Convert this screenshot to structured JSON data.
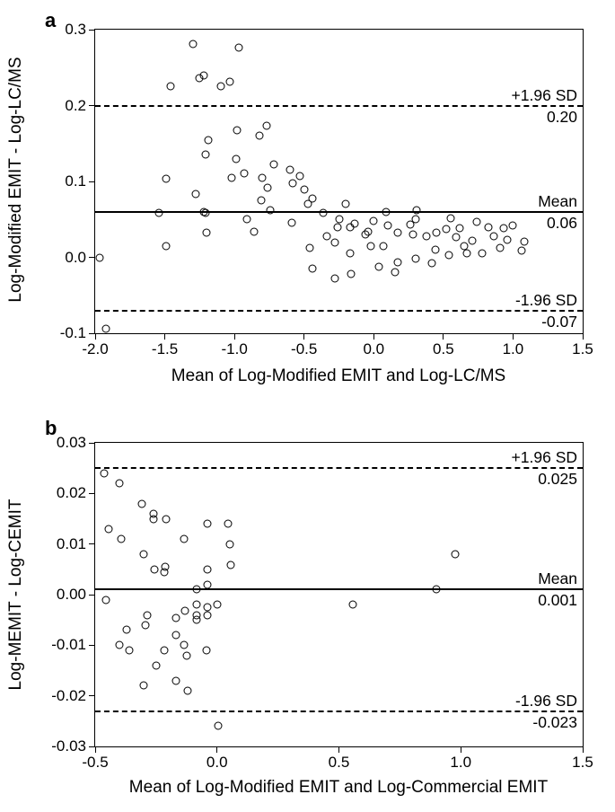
{
  "panel_a": {
    "type": "scatter",
    "panel_label": "a",
    "xlabel": "Mean of Log-Modified EMIT and Log-LC/MS",
    "ylabel": "Log-Modified EMIT - Log-LC/MS",
    "xlim": [
      -2.0,
      1.5
    ],
    "ylim": [
      -0.1,
      0.3
    ],
    "yticks": [
      -0.1,
      0.0,
      0.1,
      0.2,
      0.3
    ],
    "xticks": [
      -2.0,
      -1.5,
      -1.0,
      -0.5,
      0.0,
      0.5,
      1.0,
      1.5
    ],
    "reference_lines": {
      "upper": {
        "value": 0.2,
        "label": "+1.96 SD",
        "value_text": "0.20",
        "style": "dashed"
      },
      "mean": {
        "value": 0.06,
        "label": "Mean",
        "value_text": "0.06",
        "style": "solid"
      },
      "lower": {
        "value": -0.07,
        "label": "-1.96 SD",
        "value_text": "-0.07",
        "style": "dashed"
      }
    },
    "marker_color": "#000000",
    "marker_style": "open-circle",
    "background_color": "#ffffff",
    "points": [
      [
        -1.97,
        0.0
      ],
      [
        -1.92,
        -0.094
      ],
      [
        -1.54,
        0.058
      ],
      [
        -1.49,
        0.103
      ],
      [
        -1.49,
        0.015
      ],
      [
        -1.46,
        0.225
      ],
      [
        -1.3,
        0.281
      ],
      [
        -1.28,
        0.083
      ],
      [
        -1.25,
        0.236
      ],
      [
        -1.22,
        0.24
      ],
      [
        -1.22,
        0.06
      ],
      [
        -1.21,
        0.135
      ],
      [
        -1.21,
        0.058
      ],
      [
        -1.19,
        0.155
      ],
      [
        -1.2,
        0.033
      ],
      [
        -1.1,
        0.225
      ],
      [
        -1.03,
        0.231
      ],
      [
        -1.02,
        0.105
      ],
      [
        -0.99,
        0.13
      ],
      [
        -0.98,
        0.168
      ],
      [
        -0.97,
        0.276
      ],
      [
        -0.93,
        0.111
      ],
      [
        -0.91,
        0.05
      ],
      [
        -0.86,
        0.034
      ],
      [
        -0.82,
        0.16
      ],
      [
        -0.81,
        0.075
      ],
      [
        -0.8,
        0.105
      ],
      [
        -0.77,
        0.173
      ],
      [
        -0.76,
        0.092
      ],
      [
        -0.74,
        0.062
      ],
      [
        -0.72,
        0.122
      ],
      [
        -0.6,
        0.115
      ],
      [
        -0.59,
        0.045
      ],
      [
        -0.58,
        0.098
      ],
      [
        -0.53,
        0.107
      ],
      [
        -0.5,
        0.089
      ],
      [
        -0.47,
        0.071
      ],
      [
        -0.46,
        0.012
      ],
      [
        -0.44,
        -0.015
      ],
      [
        -0.44,
        0.078
      ],
      [
        -0.36,
        0.058
      ],
      [
        -0.34,
        0.028
      ],
      [
        -0.28,
        -0.028
      ],
      [
        -0.28,
        0.02
      ],
      [
        -0.26,
        0.04
      ],
      [
        -0.25,
        0.05
      ],
      [
        -0.2,
        0.07
      ],
      [
        -0.17,
        0.04
      ],
      [
        -0.17,
        0.005
      ],
      [
        -0.16,
        -0.022
      ],
      [
        -0.14,
        0.044
      ],
      [
        -0.06,
        0.03
      ],
      [
        -0.04,
        0.034
      ],
      [
        -0.02,
        0.015
      ],
      [
        0.0,
        0.048
      ],
      [
        0.04,
        -0.012
      ],
      [
        0.07,
        0.015
      ],
      [
        0.09,
        0.06
      ],
      [
        0.1,
        0.042
      ],
      [
        0.15,
        -0.02
      ],
      [
        0.17,
        -0.006
      ],
      [
        0.17,
        0.033
      ],
      [
        0.26,
        0.043
      ],
      [
        0.28,
        0.03
      ],
      [
        0.3,
        -0.002
      ],
      [
        0.3,
        0.05
      ],
      [
        0.31,
        0.062
      ],
      [
        0.38,
        0.028
      ],
      [
        0.42,
        -0.008
      ],
      [
        0.44,
        0.01
      ],
      [
        0.45,
        0.033
      ],
      [
        0.52,
        0.037
      ],
      [
        0.54,
        0.003
      ],
      [
        0.55,
        0.052
      ],
      [
        0.59,
        0.027
      ],
      [
        0.62,
        0.038
      ],
      [
        0.65,
        0.015
      ],
      [
        0.67,
        0.005
      ],
      [
        0.71,
        0.022
      ],
      [
        0.74,
        0.047
      ],
      [
        0.78,
        0.005
      ],
      [
        0.82,
        0.04
      ],
      [
        0.86,
        0.028
      ],
      [
        0.91,
        0.012
      ],
      [
        0.93,
        0.038
      ],
      [
        0.96,
        0.023
      ],
      [
        1.0,
        0.042
      ],
      [
        1.06,
        0.009
      ],
      [
        1.08,
        0.021
      ]
    ]
  },
  "panel_b": {
    "type": "scatter",
    "panel_label": "b",
    "xlabel": "Mean of Log-Modified EMIT and Log-Commercial EMIT",
    "ylabel": "Log-MEMIT - Log-CEMIT",
    "xlim": [
      -0.5,
      1.5
    ],
    "ylim": [
      -0.03,
      0.03
    ],
    "yticks": [
      -0.03,
      -0.02,
      -0.01,
      0.0,
      0.01,
      0.02,
      0.03
    ],
    "xticks": [
      -0.5,
      0.0,
      0.5,
      1.0,
      1.5
    ],
    "reference_lines": {
      "upper": {
        "value": 0.025,
        "label": "+1.96 SD",
        "value_text": "0.025",
        "style": "dashed"
      },
      "mean": {
        "value": 0.001,
        "label": "Mean",
        "value_text": "0.001",
        "style": "solid"
      },
      "lower": {
        "value": -0.023,
        "label": "-1.96 SD",
        "value_text": "-0.023",
        "style": "dashed"
      }
    },
    "marker_color": "#000000",
    "marker_style": "open-circle",
    "background_color": "#ffffff",
    "points": [
      [
        -0.465,
        0.024
      ],
      [
        -0.455,
        -0.001
      ],
      [
        -0.445,
        0.013
      ],
      [
        -0.4,
        -0.01
      ],
      [
        -0.4,
        0.022
      ],
      [
        -0.395,
        0.011
      ],
      [
        -0.37,
        -0.007
      ],
      [
        -0.36,
        -0.011
      ],
      [
        -0.31,
        0.018
      ],
      [
        -0.3,
        0.008
      ],
      [
        -0.3,
        -0.018
      ],
      [
        -0.295,
        -0.006
      ],
      [
        -0.288,
        -0.004
      ],
      [
        -0.26,
        0.015
      ],
      [
        -0.26,
        0.016
      ],
      [
        -0.258,
        0.005
      ],
      [
        -0.248,
        -0.014
      ],
      [
        -0.215,
        -0.011
      ],
      [
        -0.215,
        0.0045
      ],
      [
        -0.213,
        0.0055
      ],
      [
        -0.21,
        0.015
      ],
      [
        -0.17,
        -0.008
      ],
      [
        -0.17,
        -0.0047
      ],
      [
        -0.17,
        -0.017
      ],
      [
        -0.135,
        0.011
      ],
      [
        -0.135,
        -0.01
      ],
      [
        -0.13,
        -0.0032
      ],
      [
        -0.125,
        -0.012
      ],
      [
        -0.12,
        -0.019
      ],
      [
        -0.082,
        0.001
      ],
      [
        -0.085,
        -0.002
      ],
      [
        -0.083,
        -0.004
      ],
      [
        -0.085,
        -0.005
      ],
      [
        -0.038,
        0.014
      ],
      [
        -0.04,
        0.005
      ],
      [
        -0.04,
        0.002
      ],
      [
        -0.04,
        -0.0025
      ],
      [
        -0.04,
        -0.004
      ],
      [
        -0.042,
        -0.011
      ],
      [
        0.002,
        -0.002
      ],
      [
        0.005,
        -0.026
      ],
      [
        0.045,
        0.014
      ],
      [
        0.052,
        0.01
      ],
      [
        0.055,
        0.0058
      ],
      [
        0.558,
        -0.002
      ],
      [
        0.9,
        0.001
      ],
      [
        0.978,
        0.008
      ]
    ]
  },
  "fontsize_labels": 19,
  "fontsize_ticks": 17,
  "fontsize_annotations": 17.5
}
